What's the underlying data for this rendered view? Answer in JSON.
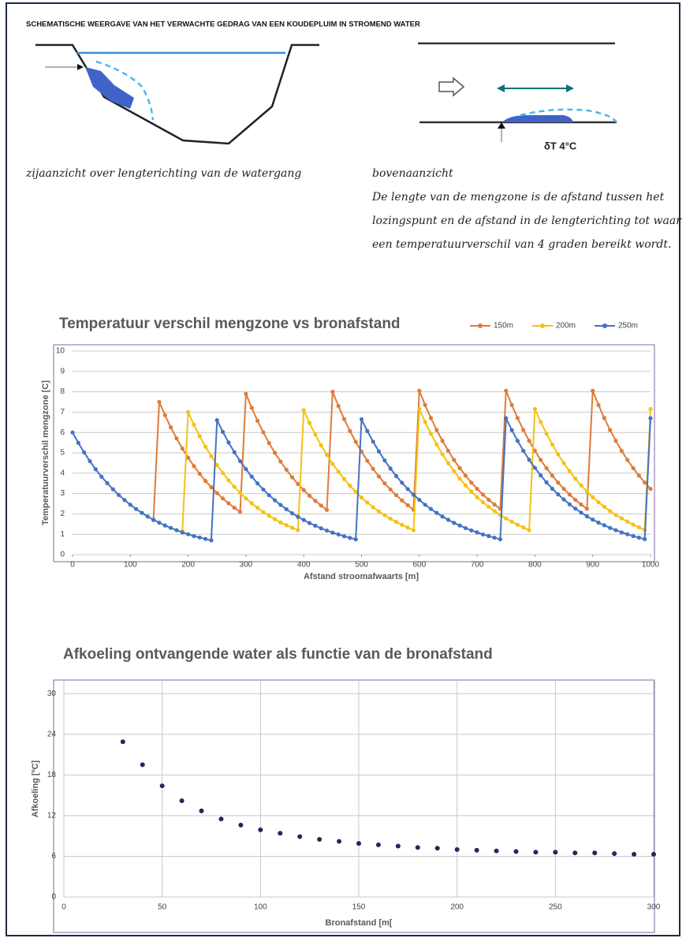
{
  "header": {
    "title": "SCHEMATISCHE WEERGAVE VAN HET VERWACHTE GEDRAG VAN EEN KOUDEPLUIM IN STROMEND WATER"
  },
  "diagram": {
    "side_caption": "zijaanzicht over lengterichting van de watergang",
    "top_caption": "bovenaanzicht",
    "delta_label": "δT  4°C",
    "description_lines": [
      "De lengte van de mengzone is de afstand tussen het",
      "lozingspunt en de afstand in de lengterichting tot waar",
      "een temperatuurverschil van 4 graden bereikt wordt."
    ]
  },
  "chart_data": [
    {
      "type": "line",
      "title": "Temperatuur verschil mengzone vs bronafstand",
      "x_label": "Afstand stroomafwaarts [m]",
      "y_label": "Temperatuurverschil mengzone [C]",
      "x": [
        0,
        10,
        20,
        30,
        40,
        50,
        60,
        70,
        80,
        90,
        100,
        110,
        120,
        130,
        140,
        150,
        160,
        170,
        180,
        190,
        200,
        210,
        220,
        230,
        240,
        250,
        260,
        270,
        280,
        290,
        300,
        310,
        320,
        330,
        340,
        350,
        360,
        370,
        380,
        390,
        400,
        410,
        420,
        430,
        440,
        450,
        460,
        470,
        480,
        490,
        500,
        510,
        520,
        530,
        540,
        550,
        560,
        570,
        580,
        590,
        600,
        610,
        620,
        630,
        640,
        650,
        660,
        670,
        680,
        690,
        700,
        710,
        720,
        730,
        740,
        750,
        760,
        770,
        780,
        790,
        800,
        810,
        820,
        830,
        840,
        850,
        860,
        870,
        880,
        890,
        900,
        910,
        920,
        930,
        940,
        950,
        960,
        970,
        980,
        990,
        1000
      ],
      "series": [
        {
          "name": "150m",
          "color": "#e07b39",
          "values": [
            null,
            null,
            null,
            null,
            null,
            null,
            null,
            null,
            null,
            null,
            null,
            null,
            null,
            null,
            1.7,
            7.5,
            6.85,
            6.25,
            5.71,
            5.21,
            4.76,
            4.35,
            3.97,
            3.62,
            3.31,
            3.02,
            2.76,
            2.52,
            2.3,
            2.1,
            7.9,
            7.21,
            6.58,
            6.01,
            5.48,
            5.0,
            4.57,
            4.17,
            3.8,
            3.47,
            3.17,
            2.89,
            2.64,
            2.41,
            2.2,
            8.0,
            7.3,
            6.66,
            6.07,
            5.54,
            5.06,
            4.61,
            4.21,
            3.84,
            3.5,
            3.2,
            2.92,
            2.66,
            2.43,
            2.2,
            8.05,
            7.35,
            6.71,
            6.12,
            5.59,
            5.1,
            4.65,
            4.25,
            3.88,
            3.54,
            3.23,
            2.95,
            2.69,
            2.46,
            2.25,
            8.05,
            7.35,
            6.71,
            6.12,
            5.59,
            5.1,
            4.65,
            4.25,
            3.88,
            3.54,
            3.23,
            2.95,
            2.69,
            2.46,
            2.25,
            8.05,
            7.35,
            6.71,
            6.12,
            5.59,
            5.1,
            4.65,
            4.25,
            3.88,
            3.54,
            3.23
          ]
        },
        {
          "name": "200m",
          "color": "#f5c211",
          "values": [
            null,
            null,
            null,
            null,
            null,
            null,
            null,
            null,
            null,
            null,
            null,
            null,
            null,
            null,
            null,
            null,
            null,
            null,
            null,
            1.15,
            7.0,
            6.38,
            5.81,
            5.3,
            4.83,
            4.4,
            4.01,
            3.65,
            3.33,
            3.03,
            2.76,
            2.52,
            2.3,
            2.09,
            1.91,
            1.74,
            1.58,
            1.44,
            1.32,
            1.2,
            7.1,
            6.47,
            5.9,
            5.37,
            4.9,
            4.46,
            4.07,
            3.71,
            3.38,
            3.08,
            2.8,
            2.56,
            2.33,
            2.12,
            1.94,
            1.76,
            1.61,
            1.46,
            1.33,
            1.2,
            7.15,
            6.52,
            5.94,
            5.41,
            4.93,
            4.49,
            4.1,
            3.73,
            3.4,
            3.1,
            2.82,
            2.57,
            2.35,
            2.14,
            1.95,
            1.78,
            1.62,
            1.47,
            1.34,
            1.2,
            7.15,
            6.52,
            5.94,
            5.41,
            4.93,
            4.49,
            4.1,
            3.73,
            3.4,
            3.1,
            2.82,
            2.57,
            2.35,
            2.14,
            1.95,
            1.78,
            1.62,
            1.47,
            1.34,
            1.2,
            7.15
          ]
        },
        {
          "name": "250m",
          "color": "#4472c4",
          "values": [
            6.0,
            5.49,
            5.02,
            4.59,
            4.19,
            3.83,
            3.51,
            3.21,
            2.93,
            2.68,
            2.45,
            2.24,
            2.05,
            1.87,
            1.71,
            1.57,
            1.43,
            1.31,
            1.2,
            1.09,
            1.0,
            0.91,
            0.84,
            0.77,
            0.7,
            6.6,
            6.03,
            5.51,
            5.03,
            4.59,
            4.2,
            3.83,
            3.5,
            3.2,
            2.92,
            2.67,
            2.44,
            2.23,
            2.03,
            1.86,
            1.7,
            1.55,
            1.42,
            1.29,
            1.18,
            1.08,
            0.99,
            0.9,
            0.82,
            0.75,
            6.65,
            6.07,
            5.55,
            5.07,
            4.63,
            4.23,
            3.86,
            3.53,
            3.22,
            2.94,
            2.69,
            2.45,
            2.24,
            2.05,
            1.87,
            1.71,
            1.56,
            1.43,
            1.3,
            1.19,
            1.09,
            0.99,
            0.91,
            0.83,
            0.75,
            6.7,
            6.12,
            5.59,
            5.1,
            4.66,
            4.26,
            3.89,
            3.55,
            3.24,
            2.96,
            2.71,
            2.47,
            2.26,
            2.06,
            1.88,
            1.72,
            1.57,
            1.44,
            1.31,
            1.2,
            1.09,
            1.0,
            0.91,
            0.83,
            0.76,
            6.7
          ]
        }
      ],
      "xlim": [
        0,
        1000
      ],
      "ylim": [
        0,
        10
      ],
      "xticks": [
        0,
        100,
        200,
        300,
        400,
        500,
        600,
        700,
        800,
        900,
        1000
      ],
      "yticks": [
        0,
        1,
        2,
        3,
        4,
        5,
        6,
        7,
        8,
        9,
        10
      ],
      "grid": "y",
      "markers": true,
      "legend": "top-right"
    },
    {
      "type": "scatter",
      "title": "Afkoeling ontvangende water als functie van de bronafstand",
      "x_label": "Bronafstand  [m[",
      "y_label": "Afkoeling [ºC]",
      "x": [
        30,
        40,
        50,
        60,
        70,
        80,
        90,
        100,
        110,
        120,
        130,
        140,
        150,
        160,
        170,
        180,
        190,
        200,
        210,
        220,
        230,
        240,
        250,
        260,
        270,
        280,
        290,
        300
      ],
      "values": [
        22.9,
        19.5,
        16.4,
        14.2,
        12.7,
        11.5,
        10.6,
        9.9,
        9.4,
        8.9,
        8.5,
        8.2,
        7.9,
        7.7,
        7.5,
        7.3,
        7.2,
        7.0,
        6.9,
        6.8,
        6.7,
        6.6,
        6.6,
        6.5,
        6.5,
        6.4,
        6.3,
        6.3
      ],
      "color": "#1f2a5a",
      "xlim": [
        0,
        300
      ],
      "ylim": [
        0,
        32
      ],
      "xticks": [
        0,
        50,
        100,
        150,
        200,
        250,
        300
      ],
      "yticks": [
        0,
        6,
        12,
        18,
        24,
        30
      ],
      "grid": "both"
    }
  ]
}
